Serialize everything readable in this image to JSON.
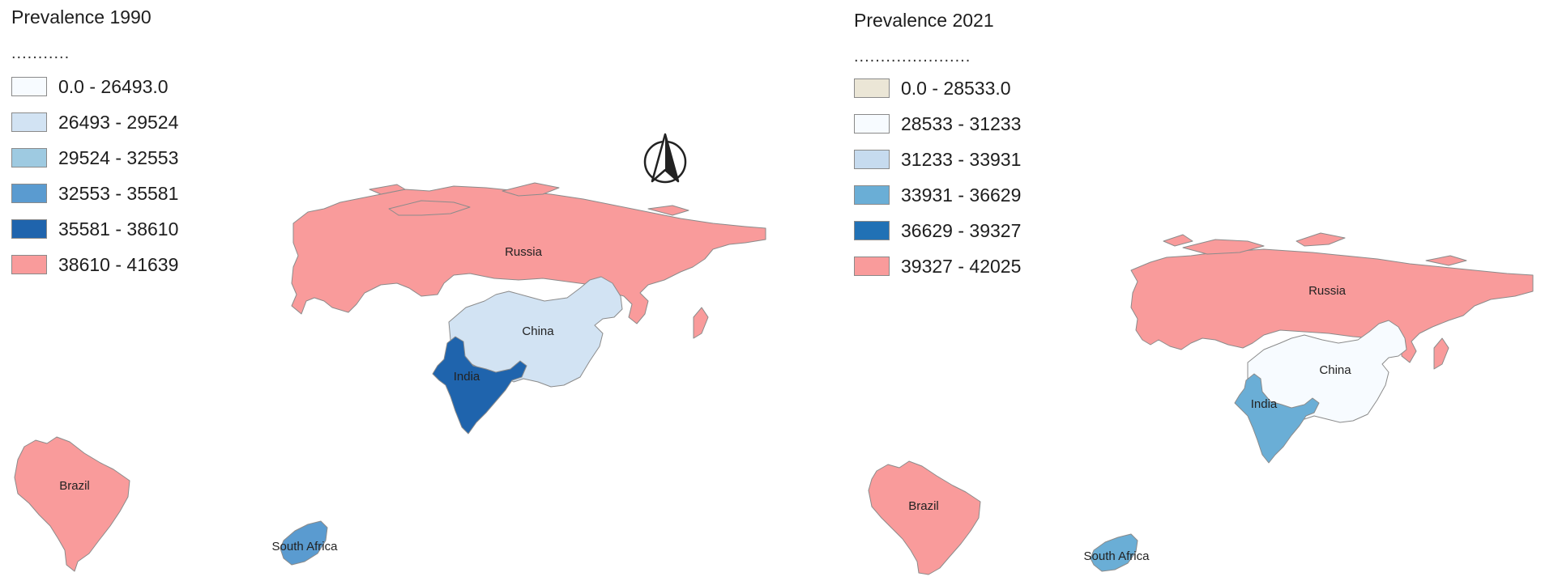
{
  "maps": [
    {
      "title": "Prevalence 1990",
      "legend_dots": "...........",
      "legend": [
        {
          "label": "0.0 - 26493.0",
          "color": "#f7fbff"
        },
        {
          "label": "26493 - 29524",
          "color": "#d2e3f3"
        },
        {
          "label": "29524 - 32553",
          "color": "#9ecae1"
        },
        {
          "label": "32553 - 35581",
          "color": "#5a9bd0"
        },
        {
          "label": "35581 - 38610",
          "color": "#1f64ad"
        },
        {
          "label": "38610 - 41639",
          "color": "#f99b9b"
        }
      ],
      "countries": [
        {
          "name": "Russia",
          "color": "#f99b9b",
          "class": "38610 - 41639"
        },
        {
          "name": "China",
          "color": "#d2e3f3",
          "class": "26493 - 29524"
        },
        {
          "name": "India",
          "color": "#1f64ad",
          "class": "35581 - 38610"
        },
        {
          "name": "Brazil",
          "color": "#f99b9b",
          "class": "38610 - 41639"
        },
        {
          "name": "South Africa",
          "color": "#5a9bd0",
          "class": "32553 - 35581"
        }
      ]
    },
    {
      "title": "Prevalence 2021",
      "legend_dots": "......................",
      "legend": [
        {
          "label": "0.0 - 28533.0",
          "color": "#ebe6d6"
        },
        {
          "label": "28533 - 31233",
          "color": "#f7fbff"
        },
        {
          "label": "31233 - 33931",
          "color": "#c6dbef"
        },
        {
          "label": "33931 - 36629",
          "color": "#6aaed6"
        },
        {
          "label": "36629 - 39327",
          "color": "#2171b5"
        },
        {
          "label": "39327 - 42025",
          "color": "#f99b9b"
        }
      ],
      "countries": [
        {
          "name": "Russia",
          "color": "#f99b9b",
          "class": "39327 - 42025"
        },
        {
          "name": "China",
          "color": "#f7fbff",
          "class": "28533 - 31233"
        },
        {
          "name": "India",
          "color": "#6aaed6",
          "class": "33931 - 36629"
        },
        {
          "name": "Brazil",
          "color": "#f99b9b",
          "class": "39327 - 42025"
        },
        {
          "name": "South Africa",
          "color": "#6aaed6",
          "class": "33931 - 36629"
        }
      ]
    }
  ],
  "north_arrow_icon": "north-arrow-icon"
}
